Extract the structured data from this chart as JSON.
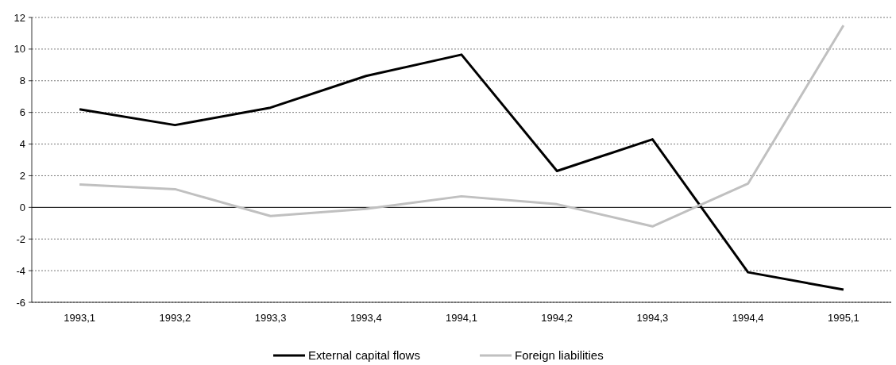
{
  "chart_data": {
    "type": "line",
    "categories": [
      "1993,1",
      "1993,2",
      "1993,3",
      "1993,4",
      "1994,1",
      "1994,2",
      "1994,3",
      "1994,4",
      "1995,1"
    ],
    "series": [
      {
        "name": "External capital flows",
        "color": "#000000",
        "values": [
          6.2,
          5.2,
          6.3,
          8.3,
          9.65,
          2.3,
          4.3,
          -4.1,
          -5.2
        ]
      },
      {
        "name": "Foreign liabilities",
        "color": "#c0c0c0",
        "values": [
          1.45,
          1.15,
          -0.55,
          -0.1,
          0.7,
          0.2,
          -1.2,
          1.5,
          11.5
        ]
      }
    ],
    "ylim": [
      -6,
      12
    ],
    "yticks": [
      -6,
      -4,
      -2,
      0,
      2,
      4,
      6,
      8,
      10,
      12
    ],
    "grid": "y",
    "legend": "bottom",
    "marker": "none",
    "line_style": "solid"
  }
}
